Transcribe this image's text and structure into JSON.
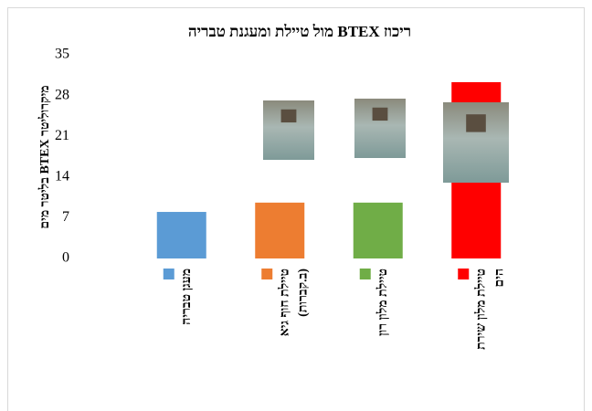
{
  "chart_data": {
    "type": "bar",
    "title": "ריכוז BTEX מול טיילת ומעגנת טבריה",
    "y_label": "מיקרוליטר BTEX בליטר מים",
    "categories": [
      [
        "מעגן טבריה"
      ],
      [
        "טיילת חוף גיא",
        "(ב.קברות)"
      ],
      [
        "טיילת מלון רון"
      ],
      [
        "טיילת מלון שירת",
        "הים"
      ]
    ],
    "values": [
      8,
      9.6,
      9.6,
      30.3
    ],
    "colors": [
      "#5b9bd5",
      "#ed7d31",
      "#70ad47",
      "#ff0000"
    ],
    "ylim": [
      0,
      35
    ],
    "yticks": [
      0,
      7,
      14,
      21,
      28,
      35
    ],
    "grid": false
  }
}
